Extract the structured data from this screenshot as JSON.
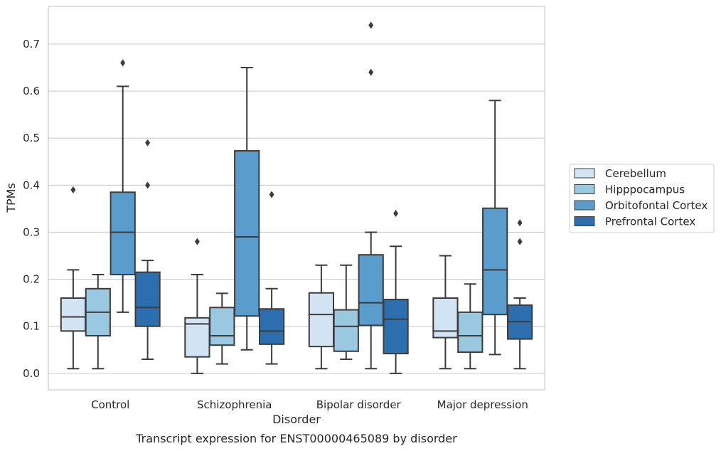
{
  "chart_data": {
    "type": "box",
    "caption": "Transcript expression for ENST00000465089 by disorder",
    "xlabel": "Disorder",
    "ylabel": "TPMs",
    "ylim": [
      -0.035,
      0.78
    ],
    "yticks": [
      0.0,
      0.1,
      0.2,
      0.3,
      0.4,
      0.5,
      0.6,
      0.7
    ],
    "ytick_labels": [
      "0.0",
      "0.1",
      "0.2",
      "0.3",
      "0.4",
      "0.5",
      "0.6",
      "0.7"
    ],
    "grid": "horizontal",
    "legend_placement": "right-center",
    "categories": [
      "Control",
      "Schizophrenia",
      "Bipolar disorder",
      "Major depression"
    ],
    "series": [
      {
        "name": "Cerebellum",
        "color": "#d2e3f3",
        "boxes": [
          {
            "whislo": 0.01,
            "q1": 0.09,
            "med": 0.12,
            "q3": 0.16,
            "whishi": 0.22,
            "fliers": [
              0.39
            ]
          },
          {
            "whislo": 0.0,
            "q1": 0.035,
            "med": 0.105,
            "q3": 0.118,
            "whishi": 0.21,
            "fliers": [
              0.28
            ]
          },
          {
            "whislo": 0.01,
            "q1": 0.057,
            "med": 0.125,
            "q3": 0.171,
            "whishi": 0.23,
            "fliers": []
          },
          {
            "whislo": 0.01,
            "q1": 0.076,
            "med": 0.09,
            "q3": 0.16,
            "whishi": 0.25,
            "fliers": []
          }
        ]
      },
      {
        "name": "Hipppocampus",
        "color": "#9ac8e0",
        "boxes": [
          {
            "whislo": 0.01,
            "q1": 0.08,
            "med": 0.13,
            "q3": 0.18,
            "whishi": 0.21,
            "fliers": []
          },
          {
            "whislo": 0.02,
            "q1": 0.06,
            "med": 0.08,
            "q3": 0.14,
            "whishi": 0.17,
            "fliers": []
          },
          {
            "whislo": 0.03,
            "q1": 0.047,
            "med": 0.1,
            "q3": 0.135,
            "whishi": 0.23,
            "fliers": []
          },
          {
            "whislo": 0.01,
            "q1": 0.045,
            "med": 0.08,
            "q3": 0.13,
            "whishi": 0.19,
            "fliers": []
          }
        ]
      },
      {
        "name": "Orbitofontal Cortex",
        "color": "#5a9dcd",
        "boxes": [
          {
            "whislo": 0.13,
            "q1": 0.21,
            "med": 0.3,
            "q3": 0.385,
            "whishi": 0.61,
            "fliers": [
              0.66
            ]
          },
          {
            "whislo": 0.05,
            "q1": 0.122,
            "med": 0.29,
            "q3": 0.473,
            "whishi": 0.65,
            "fliers": []
          },
          {
            "whislo": 0.01,
            "q1": 0.102,
            "med": 0.15,
            "q3": 0.252,
            "whishi": 0.3,
            "fliers": [
              0.64,
              0.74
            ]
          },
          {
            "whislo": 0.04,
            "q1": 0.125,
            "med": 0.22,
            "q3": 0.351,
            "whishi": 0.58,
            "fliers": []
          }
        ]
      },
      {
        "name": "Prefrontal Cortex",
        "color": "#2d6eaf",
        "boxes": [
          {
            "whislo": 0.03,
            "q1": 0.1,
            "med": 0.14,
            "q3": 0.215,
            "whishi": 0.24,
            "fliers": [
              0.4,
              0.49
            ]
          },
          {
            "whislo": 0.02,
            "q1": 0.062,
            "med": 0.09,
            "q3": 0.137,
            "whishi": 0.18,
            "fliers": [
              0.38
            ]
          },
          {
            "whislo": 0.0,
            "q1": 0.042,
            "med": 0.115,
            "q3": 0.157,
            "whishi": 0.27,
            "fliers": [
              0.34
            ]
          },
          {
            "whislo": 0.01,
            "q1": 0.073,
            "med": 0.11,
            "q3": 0.145,
            "whishi": 0.16,
            "fliers": [
              0.28,
              0.32
            ]
          }
        ]
      }
    ]
  }
}
